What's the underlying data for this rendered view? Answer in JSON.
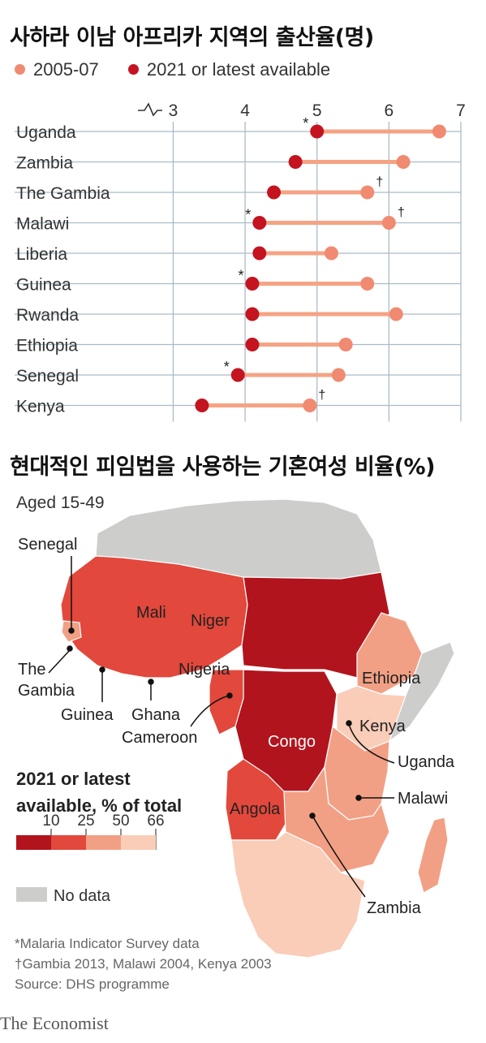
{
  "chart_title": "사하라 이남 아프리카 지역의 출산율(명)",
  "map_title": "현대적인 피임법을 사용하는 기혼여성 비율(%)",
  "colors": {
    "early": "#f08a70",
    "latest": "#c41420",
    "line": "#f5a384",
    "grid": "#aabcc5",
    "bin1": "#b2141d",
    "bin2": "#e2483b",
    "bin3": "#f2a085",
    "bin4": "#f9cdb8",
    "nodata": "#cdcdcb"
  },
  "chart_data": [
    {
      "type": "dot-plot",
      "title": "사하라 이남 아프리카 지역의 출산율(명)",
      "legend": [
        "2005-07",
        "2021 or latest available"
      ],
      "legend_placement": "top-left",
      "xlim": [
        2.6,
        7
      ],
      "xticks": [
        "3",
        "4",
        "5",
        "6",
        "7"
      ],
      "grid": true,
      "categories": [
        "Uganda",
        "Zambia",
        "The Gambia",
        "Malawi",
        "Liberia",
        "Guinea",
        "Rwanda",
        "Ethiopia",
        "Senegal",
        "Kenya"
      ],
      "series": [
        {
          "name": "2005-07",
          "values": [
            6.7,
            6.2,
            5.7,
            6.0,
            5.2,
            5.7,
            6.1,
            5.4,
            5.3,
            4.9
          ]
        },
        {
          "name": "2021 or latest available",
          "values": [
            5.0,
            4.7,
            4.4,
            4.2,
            4.2,
            4.1,
            4.1,
            4.1,
            3.9,
            3.4
          ]
        }
      ],
      "marks": {
        "asterisk": [
          "Uganda",
          "Malawi",
          "Guinea",
          "Senegal"
        ],
        "dagger": [
          "The Gambia",
          "Malawi",
          "Kenya"
        ]
      }
    },
    {
      "type": "choropleth-map",
      "title": "현대적인 피임법을 사용하는 기혼여성 비율(%)",
      "subtitle": "Aged 15-49",
      "legend_title_1": "2021 or latest",
      "legend_title_2": "available, % of total",
      "legend_ticks": [
        "10",
        "25",
        "50",
        "66"
      ],
      "no_data_label": "No data",
      "labels": {
        "senegal": "Senegal",
        "mali": "Mali",
        "niger": "Niger",
        "nigeria": "Nigeria",
        "gambia_1": "The",
        "gambia_2": "Gambia",
        "guinea": "Guinea",
        "ghana": "Ghana",
        "cameroon": "Cameroon",
        "ethiopia": "Ethiopia",
        "kenya": "Kenya",
        "congo": "Congo",
        "uganda": "Uganda",
        "malawi": "Malawi",
        "angola": "Angola",
        "zambia": "Zambia"
      }
    }
  ],
  "footer": {
    "note1": "*Malaria Indicator Survey data",
    "note2": "†Gambia 2013, Malawi 2004, Kenya 2003",
    "source": "Source: DHS programme"
  },
  "brand": "The Economist"
}
